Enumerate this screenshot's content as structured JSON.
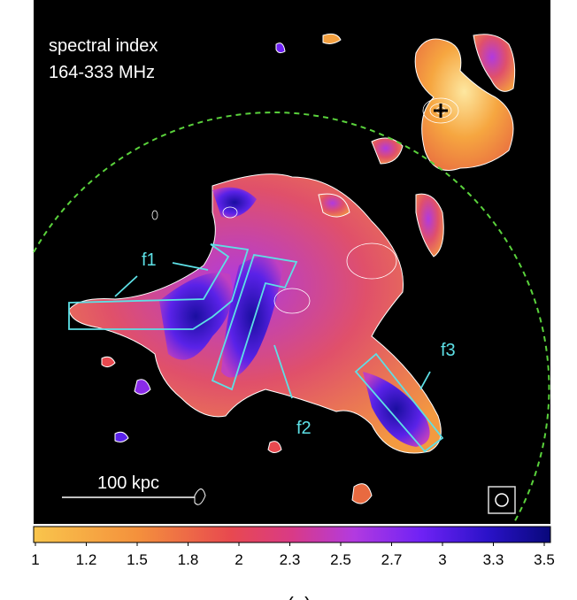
{
  "annotations": {
    "title_line1": "spectral index",
    "title_line2": "164-333 MHz",
    "filament_labels": [
      "f1",
      "f2",
      "f3"
    ],
    "scale_bar": "100 kpc"
  },
  "colorbar": {
    "ticks": [
      "1",
      "1.2",
      "1.5",
      "1.8",
      "2",
      "2.3",
      "2.5",
      "2.7",
      "3",
      "3.3",
      "3.5"
    ]
  },
  "caption": "(a)"
}
